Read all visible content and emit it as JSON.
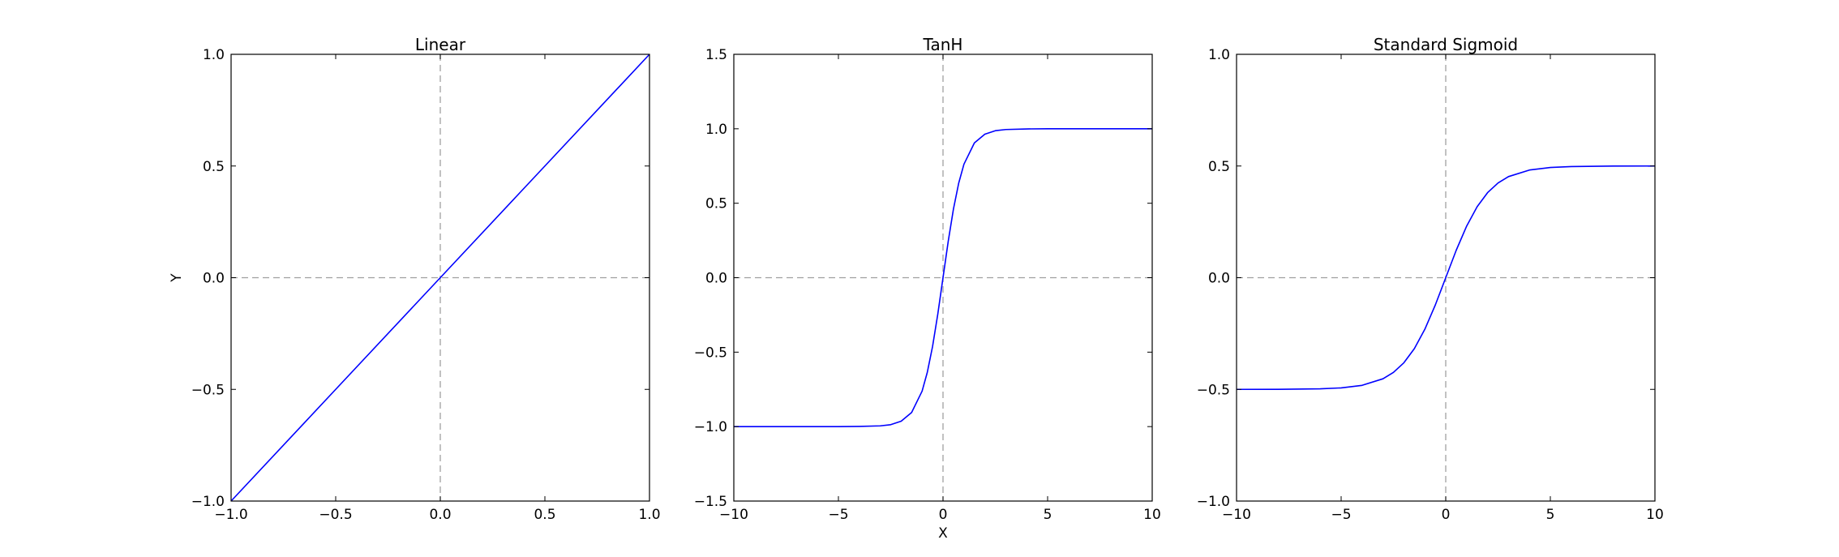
{
  "chart_data": [
    {
      "type": "line",
      "title": "Linear",
      "xlabel": "",
      "ylabel": "Y",
      "xlim": [
        -1.0,
        1.0
      ],
      "ylim": [
        -1.0,
        1.0
      ],
      "xticks": [
        "−1.0",
        "−0.5",
        "0.0",
        "0.5",
        "1.0"
      ],
      "yticks": [
        "−1.0",
        "−0.5",
        "0.0",
        "0.5",
        "1.0"
      ],
      "xtick_values": [
        -1.0,
        -0.5,
        0.0,
        0.5,
        1.0
      ],
      "ytick_values": [
        -1.0,
        -0.5,
        0.0,
        0.5,
        1.0
      ],
      "grid": false,
      "reference_lines": {
        "x": 0,
        "y": 0,
        "style": "dashed",
        "color": "#a0a0a0"
      },
      "line_color": "#0000ff",
      "series": [
        {
          "x": [
            -1.0,
            -0.5,
            0.0,
            0.5,
            1.0
          ],
          "y": [
            -1.0,
            -0.5,
            0.0,
            0.5,
            1.0
          ]
        }
      ]
    },
    {
      "type": "line",
      "title": "TanH",
      "xlabel": "X",
      "ylabel": "",
      "xlim": [
        -10,
        10
      ],
      "ylim": [
        -1.5,
        1.5
      ],
      "xticks": [
        "−10",
        "−5",
        "0",
        "5",
        "10"
      ],
      "yticks": [
        "−1.5",
        "−1.0",
        "−0.5",
        "0.0",
        "0.5",
        "1.0",
        "1.5"
      ],
      "xtick_values": [
        -10,
        -5,
        0,
        5,
        10
      ],
      "ytick_values": [
        -1.5,
        -1.0,
        -0.5,
        0.0,
        0.5,
        1.0,
        1.5
      ],
      "grid": false,
      "reference_lines": {
        "x": 0,
        "y": 0,
        "style": "dashed",
        "color": "#a0a0a0"
      },
      "line_color": "#0000ff",
      "series": [
        {
          "x": [
            -10,
            -5,
            -4,
            -3,
            -2.5,
            -2,
            -1.5,
            -1,
            -0.75,
            -0.5,
            -0.25,
            0,
            0.25,
            0.5,
            0.75,
            1,
            1.5,
            2,
            2.5,
            3,
            4,
            5,
            10
          ],
          "y": [
            -1.0,
            -1.0,
            -0.999,
            -0.995,
            -0.987,
            -0.964,
            -0.905,
            -0.762,
            -0.635,
            -0.462,
            -0.245,
            0.0,
            0.245,
            0.462,
            0.635,
            0.762,
            0.905,
            0.964,
            0.987,
            0.995,
            0.999,
            1.0,
            1.0
          ]
        }
      ]
    },
    {
      "type": "line",
      "title": "Standard Sigmoid",
      "xlabel": "",
      "ylabel": "",
      "xlim": [
        -10,
        10
      ],
      "ylim": [
        -1.0,
        1.0
      ],
      "xticks": [
        "−10",
        "−5",
        "0",
        "5",
        "10"
      ],
      "yticks": [
        "−1.0",
        "−0.5",
        "0.0",
        "0.5",
        "1.0"
      ],
      "xtick_values": [
        -10,
        -5,
        0,
        5,
        10
      ],
      "ytick_values": [
        -1.0,
        -0.5,
        0.0,
        0.5,
        1.0
      ],
      "grid": false,
      "reference_lines": {
        "x": 0,
        "y": 0,
        "style": "dashed",
        "color": "#a0a0a0"
      },
      "line_color": "#0000ff",
      "series": [
        {
          "x": [
            -10,
            -8,
            -6,
            -5,
            -4,
            -3,
            -2.5,
            -2,
            -1.5,
            -1,
            -0.5,
            0,
            0.5,
            1,
            1.5,
            2,
            2.5,
            3,
            4,
            5,
            6,
            8,
            10
          ],
          "y": [
            -0.5,
            -0.4997,
            -0.4975,
            -0.4933,
            -0.482,
            -0.4526,
            -0.4241,
            -0.3808,
            -0.3176,
            -0.2311,
            -0.1225,
            0.0,
            0.1225,
            0.2311,
            0.3176,
            0.3808,
            0.4241,
            0.4526,
            0.482,
            0.4933,
            0.4975,
            0.4997,
            0.5
          ]
        }
      ]
    }
  ]
}
